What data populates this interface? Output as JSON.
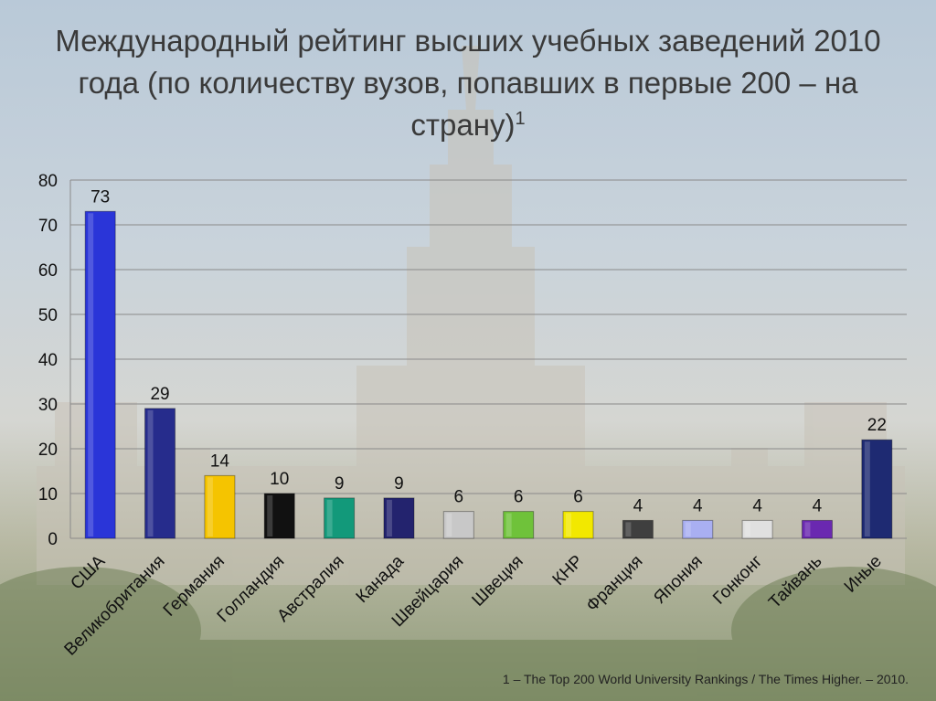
{
  "title_main": "Международный рейтинг высших учебных заведений 2010 года (по количеству вузов, попавших в первые 200 – на страну)",
  "title_sup": "1",
  "footnote": "1 – The Top 200 World University Rankings / The Times Higher. – 2010.",
  "chart_data": {
    "type": "bar",
    "categories": [
      "США",
      "Великобритания",
      "Германия",
      "Голландия",
      "Австралия",
      "Канада",
      "Швейцария",
      "Швеция",
      "КНР",
      "Франция",
      "Япония",
      "Гонконг",
      "Тайвань",
      "Иные"
    ],
    "values": [
      73,
      29,
      14,
      10,
      9,
      9,
      6,
      6,
      6,
      4,
      4,
      4,
      4,
      22
    ],
    "colors": [
      "#2a35d8",
      "#262c8c",
      "#f5c400",
      "#111111",
      "#12997a",
      "#23236e",
      "#c8c8c8",
      "#6fc23a",
      "#f2e800",
      "#3f3f3f",
      "#a9aff2",
      "#e0e0e0",
      "#6a28b0",
      "#1e2a72"
    ],
    "ylim": [
      0,
      80
    ],
    "yticks": [
      0,
      10,
      20,
      30,
      40,
      50,
      60,
      70,
      80
    ],
    "grid": true,
    "xlabel": "",
    "ylabel": ""
  }
}
